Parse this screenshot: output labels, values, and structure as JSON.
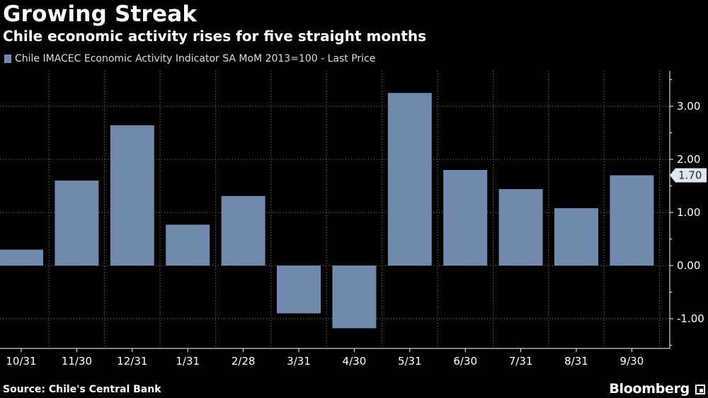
{
  "header": {
    "title": "Growing Streak",
    "subtitle": "Chile economic activity rises for five straight months"
  },
  "legend": {
    "label": "Chile IMACEC Economic Activity Indicator SA MoM 2013=100 - Last Price"
  },
  "footer": {
    "source": "Source: Chile's Central Bank",
    "brand": "Bloomberg"
  },
  "colors": {
    "background": "#000000",
    "bar": "#7189ad",
    "grid": "#888888"
  },
  "chart_data": {
    "type": "bar",
    "categories": [
      "10/31",
      "11/30",
      "12/31",
      "1/31",
      "2/28",
      "3/31",
      "4/30",
      "5/31",
      "6/30",
      "7/31",
      "8/31",
      "9/30"
    ],
    "series": [
      {
        "name": "Chile IMACEC Economic Activity Indicator SA MoM 2013=100 - Last Price",
        "values": [
          0.3,
          1.6,
          2.64,
          0.77,
          1.31,
          -0.9,
          -1.18,
          3.25,
          1.8,
          1.44,
          1.08,
          1.7
        ]
      }
    ],
    "yticks": [
      "-1.00",
      "0.00",
      "1.00",
      "2.00",
      "3.00"
    ],
    "ytick_values": [
      -1,
      0,
      1,
      2,
      3
    ],
    "ylim": [
      -1.6,
      3.7
    ],
    "last_value_label": "1.70",
    "axis_position": "right",
    "grid": true
  }
}
